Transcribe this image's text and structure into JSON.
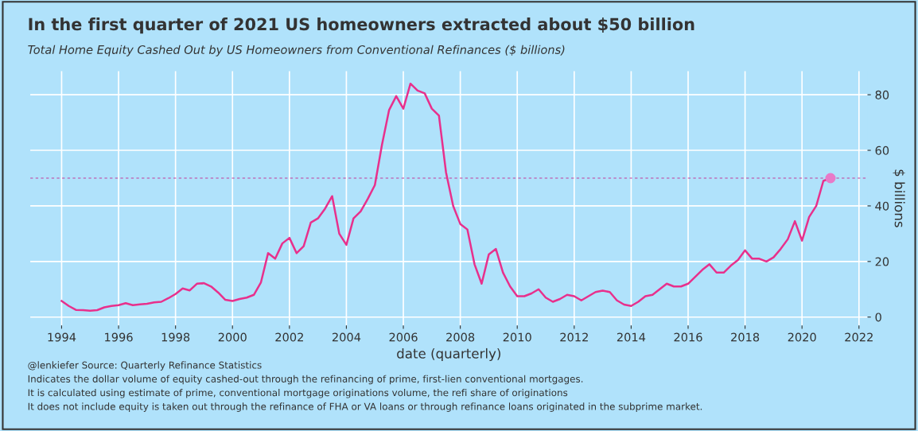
{
  "chart_data": {
    "type": "line",
    "title": "In the first quarter of 2021 US homeowners extracted about $50 billion",
    "subtitle": "Total Home Equity Cashed Out by US Homeowners from Conventional Refinances ($ billions)",
    "xlabel": "date (quarterly)",
    "y2label": "$ billions",
    "annotations": [
      "@lenkiefer Source: Quarterly Refinance Statistics",
      "Indicates the dollar volume of equity cashed-out through the refinancing of prime, first-lien conventional mortgages.",
      "It is calculated using estimate of prime, conventional mortgage originations volume, the refi share of originations",
      "It does not include equity is taken out through the refinance of FHA or VA loans or through refinance loans originated in the subprime market."
    ],
    "series": [
      {
        "axis": "y2",
        "color": "#e8308c",
        "x": [
          1994.0,
          1994.25,
          1994.5,
          1994.75,
          1995.0,
          1995.25,
          1995.5,
          1995.75,
          1996.0,
          1996.25,
          1996.5,
          1996.75,
          1997.0,
          1997.25,
          1997.5,
          1997.75,
          1998.0,
          1998.25,
          1998.5,
          1998.75,
          1999.0,
          1999.25,
          1999.5,
          1999.75,
          2000.0,
          2000.25,
          2000.5,
          2000.75,
          2001.0,
          2001.25,
          2001.5,
          2001.75,
          2002.0,
          2002.25,
          2002.5,
          2002.75,
          2003.0,
          2003.25,
          2003.5,
          2003.75,
          2004.0,
          2004.25,
          2004.5,
          2004.75,
          2005.0,
          2005.25,
          2005.5,
          2005.75,
          2006.0,
          2006.25,
          2006.5,
          2006.75,
          2007.0,
          2007.25,
          2007.5,
          2007.75,
          2008.0,
          2008.25,
          2008.5,
          2008.75,
          2009.0,
          2009.25,
          2009.5,
          2009.75,
          2010.0,
          2010.25,
          2010.5,
          2010.75,
          2011.0,
          2011.25,
          2011.5,
          2011.75,
          2012.0,
          2012.25,
          2012.5,
          2012.75,
          2013.0,
          2013.25,
          2013.5,
          2013.75,
          2014.0,
          2014.25,
          2014.5,
          2014.75,
          2015.0,
          2015.25,
          2015.5,
          2015.75,
          2016.0,
          2016.25,
          2016.5,
          2016.75,
          2017.0,
          2017.25,
          2017.5,
          2017.75,
          2018.0,
          2018.25,
          2018.5,
          2018.75,
          2019.0,
          2019.25,
          2019.5,
          2019.75,
          2020.0,
          2020.25,
          2020.5,
          2020.75,
          2021.0
        ],
        "values": [
          5.8,
          4,
          2.6,
          2.5,
          2.3,
          2.5,
          3.5,
          4,
          4.3,
          5,
          4.3,
          4.6,
          4.8,
          5.3,
          5.5,
          6.8,
          8.3,
          10.3,
          9.6,
          12,
          12.2,
          11,
          8.8,
          6.2,
          5.8,
          6.5,
          7,
          8,
          12.5,
          23,
          21,
          26.5,
          28.5,
          23,
          25.5,
          34,
          35.5,
          39,
          43.5,
          30,
          26,
          35.5,
          38,
          42.5,
          47.5,
          62,
          74.5,
          79.5,
          75,
          84,
          81.5,
          80.5,
          75,
          72.5,
          52,
          40,
          33.5,
          31.5,
          19,
          12,
          22.5,
          24.5,
          16,
          11,
          7.5,
          7.5,
          8.5,
          10,
          7,
          5.5,
          6.5,
          8,
          7.5,
          6,
          7.5,
          9,
          9.5,
          9,
          6,
          4.5,
          4,
          5.5,
          7.5,
          8,
          10,
          12,
          11,
          11,
          12,
          14.5,
          17,
          19,
          16,
          16,
          18.5,
          20.5,
          24,
          21,
          21,
          20,
          21.5,
          24.5,
          28,
          34.5,
          27.5,
          36,
          40,
          49,
          50
        ]
      },
      {
        "type": "scatter",
        "axis": "y2",
        "color": "#e87ac8",
        "x": [
          2021.0
        ],
        "values": [
          50
        ]
      }
    ],
    "xlim": [
      1992.9,
      2022.3
    ],
    "xticks": [
      1994,
      1996,
      1998,
      2000,
      2002,
      2004,
      2006,
      2008,
      2010,
      2012,
      2014,
      2016,
      2018,
      2020,
      2022
    ],
    "y2lim": [
      -3,
      88.5
    ],
    "y2ticks": [
      0,
      20,
      40,
      60,
      80
    ],
    "ref_lines": [
      {
        "axis": "y2",
        "value": 50,
        "color": "#c03c9c",
        "line_style": "dashed"
      }
    ],
    "grid": true
  }
}
